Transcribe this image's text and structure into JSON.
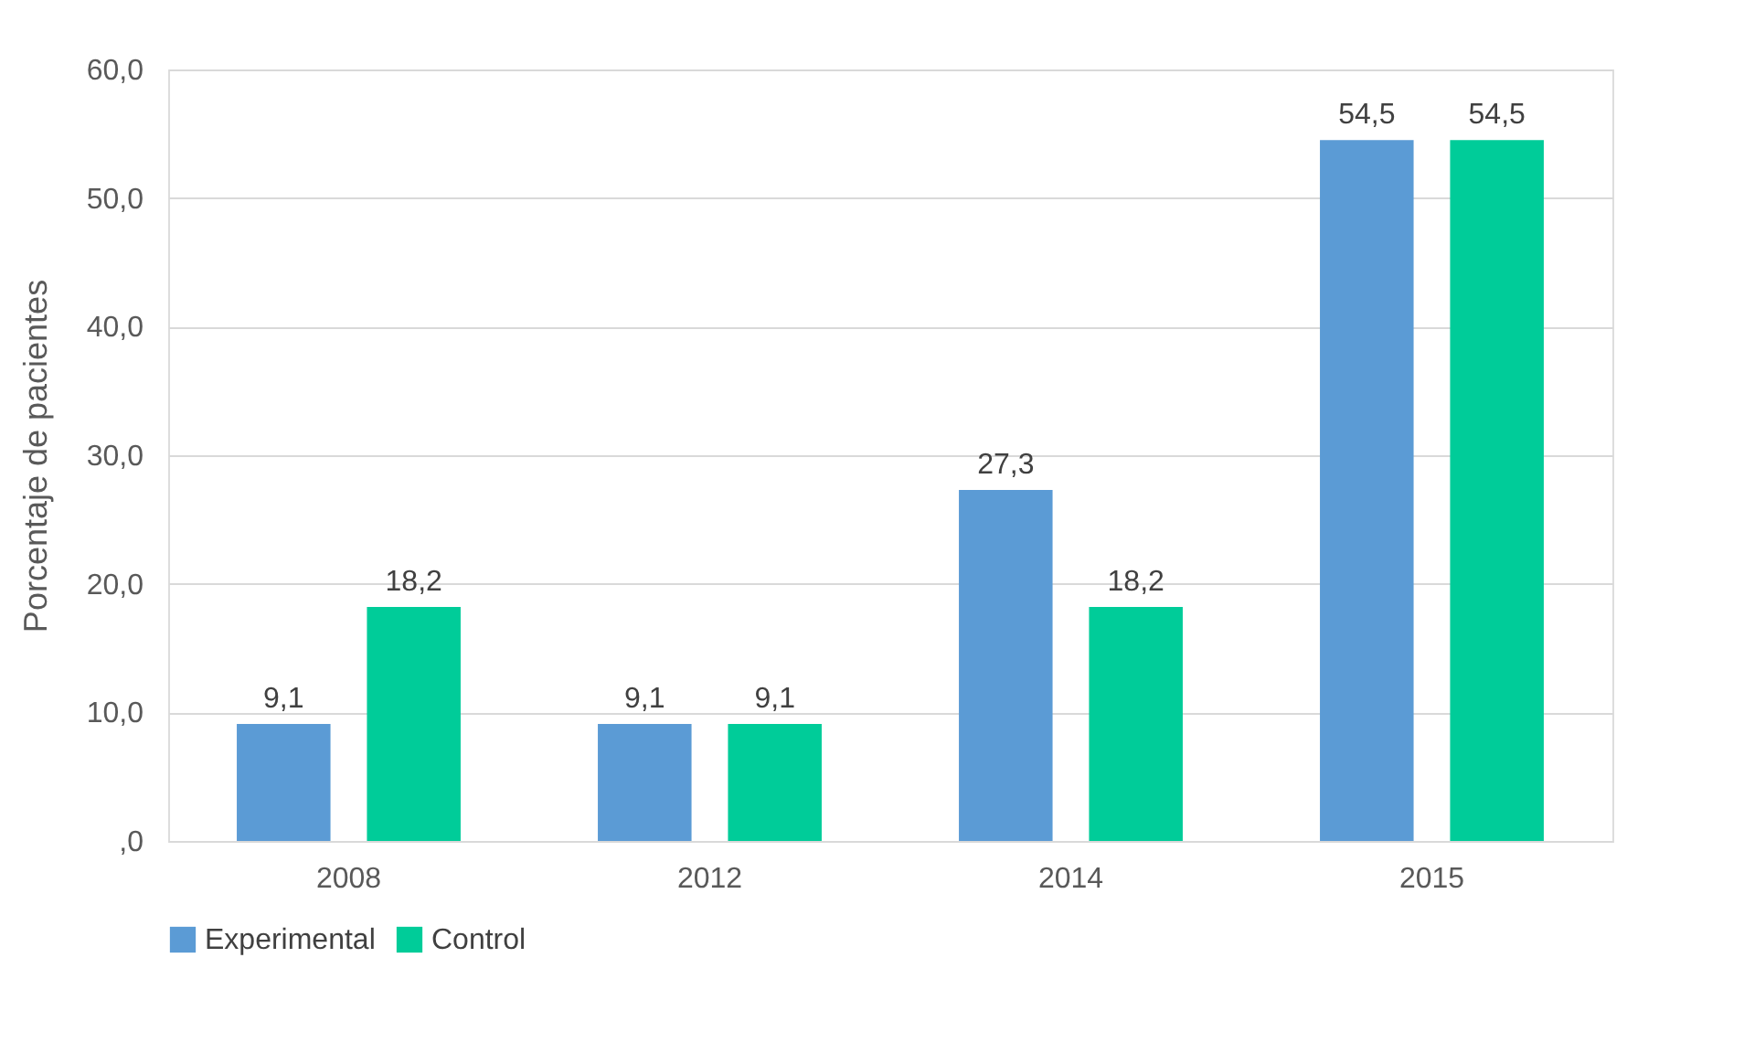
{
  "chart_data": {
    "type": "bar",
    "ylabel": "Porcentaje de pacientes",
    "categories": [
      "2008",
      "2012",
      "2014",
      "2015"
    ],
    "series": [
      {
        "name": "Experimental",
        "color": "#5b9bd5",
        "values": [
          9.1,
          9.1,
          27.3,
          54.5
        ],
        "value_labels": [
          "9,1",
          "9,1",
          "27,3",
          "54,5"
        ]
      },
      {
        "name": "Control",
        "color": "#00cc99",
        "values": [
          18.2,
          9.1,
          18.2,
          54.5
        ],
        "value_labels": [
          "18,2",
          "9,1",
          "18,2",
          "54,5"
        ]
      }
    ],
    "ylim": [
      0,
      60
    ],
    "yticks": [
      {
        "value": 0,
        "label": ",0"
      },
      {
        "value": 10,
        "label": "10,0"
      },
      {
        "value": 20,
        "label": "20,0"
      },
      {
        "value": 30,
        "label": "30,0"
      },
      {
        "value": 40,
        "label": "40,0"
      },
      {
        "value": 50,
        "label": "50,0"
      },
      {
        "value": 60,
        "label": "60,0"
      }
    ],
    "grid": "y",
    "legend": "bottom"
  }
}
